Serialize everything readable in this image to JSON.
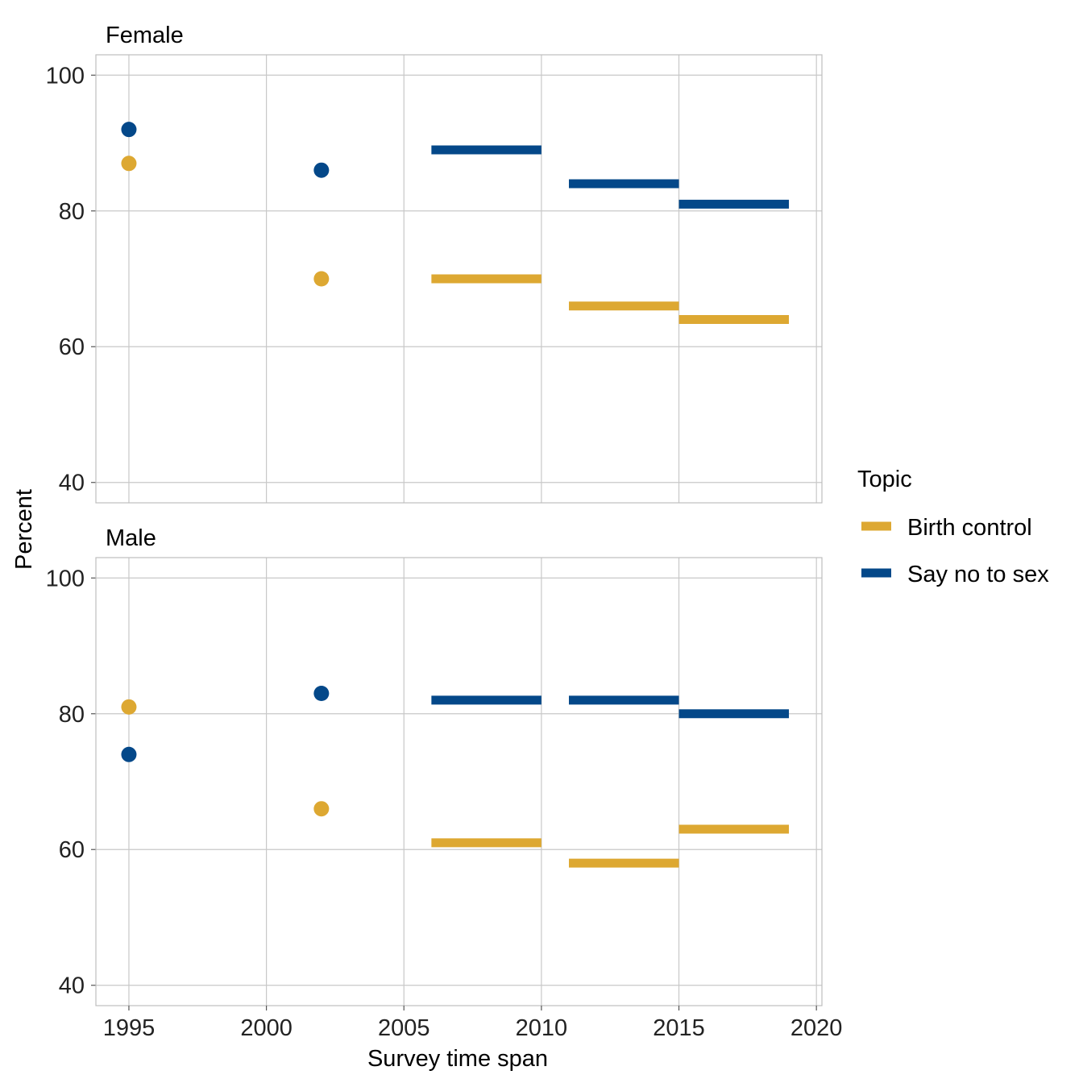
{
  "chart_data": {
    "type": "scatter",
    "xlabel": "Survey time span",
    "ylabel": "Percent",
    "xlim": [
      1993.8,
      2020.2
    ],
    "x_ticks": [
      1995,
      2000,
      2005,
      2010,
      2015,
      2020
    ],
    "y_ticks": [
      40,
      60,
      80,
      100
    ],
    "ylim": [
      37,
      103
    ],
    "grid": true,
    "legend": {
      "title": "Topic",
      "position": "right",
      "entries": [
        {
          "label": "Birth control",
          "color": "#DDA832"
        },
        {
          "label": "Say no to sex",
          "color": "#044889"
        }
      ]
    },
    "panels": [
      {
        "title": "Female",
        "series": [
          {
            "name": "Birth control",
            "color": "#DDA832",
            "points": [
              {
                "x": 1995,
                "y": 87
              },
              {
                "x": 2002,
                "y": 70
              }
            ],
            "spans": [
              {
                "x_start": 2006,
                "x_end": 2010,
                "y": 70
              },
              {
                "x_start": 2011,
                "x_end": 2015,
                "y": 66
              },
              {
                "x_start": 2015,
                "x_end": 2019,
                "y": 64
              }
            ]
          },
          {
            "name": "Say no to sex",
            "color": "#044889",
            "points": [
              {
                "x": 1995,
                "y": 92
              },
              {
                "x": 2002,
                "y": 86
              }
            ],
            "spans": [
              {
                "x_start": 2006,
                "x_end": 2010,
                "y": 89
              },
              {
                "x_start": 2011,
                "x_end": 2015,
                "y": 84
              },
              {
                "x_start": 2015,
                "x_end": 2019,
                "y": 81
              }
            ]
          }
        ]
      },
      {
        "title": "Male",
        "series": [
          {
            "name": "Birth control",
            "color": "#DDA832",
            "points": [
              {
                "x": 1995,
                "y": 81
              },
              {
                "x": 2002,
                "y": 66
              }
            ],
            "spans": [
              {
                "x_start": 2006,
                "x_end": 2010,
                "y": 61
              },
              {
                "x_start": 2011,
                "x_end": 2015,
                "y": 58
              },
              {
                "x_start": 2015,
                "x_end": 2019,
                "y": 63
              }
            ]
          },
          {
            "name": "Say no to sex",
            "color": "#044889",
            "points": [
              {
                "x": 1995,
                "y": 74
              },
              {
                "x": 2002,
                "y": 83
              }
            ],
            "spans": [
              {
                "x_start": 2006,
                "x_end": 2010,
                "y": 82
              },
              {
                "x_start": 2011,
                "x_end": 2015,
                "y": 82
              },
              {
                "x_start": 2015,
                "x_end": 2019,
                "y": 80
              }
            ]
          }
        ]
      }
    ]
  }
}
